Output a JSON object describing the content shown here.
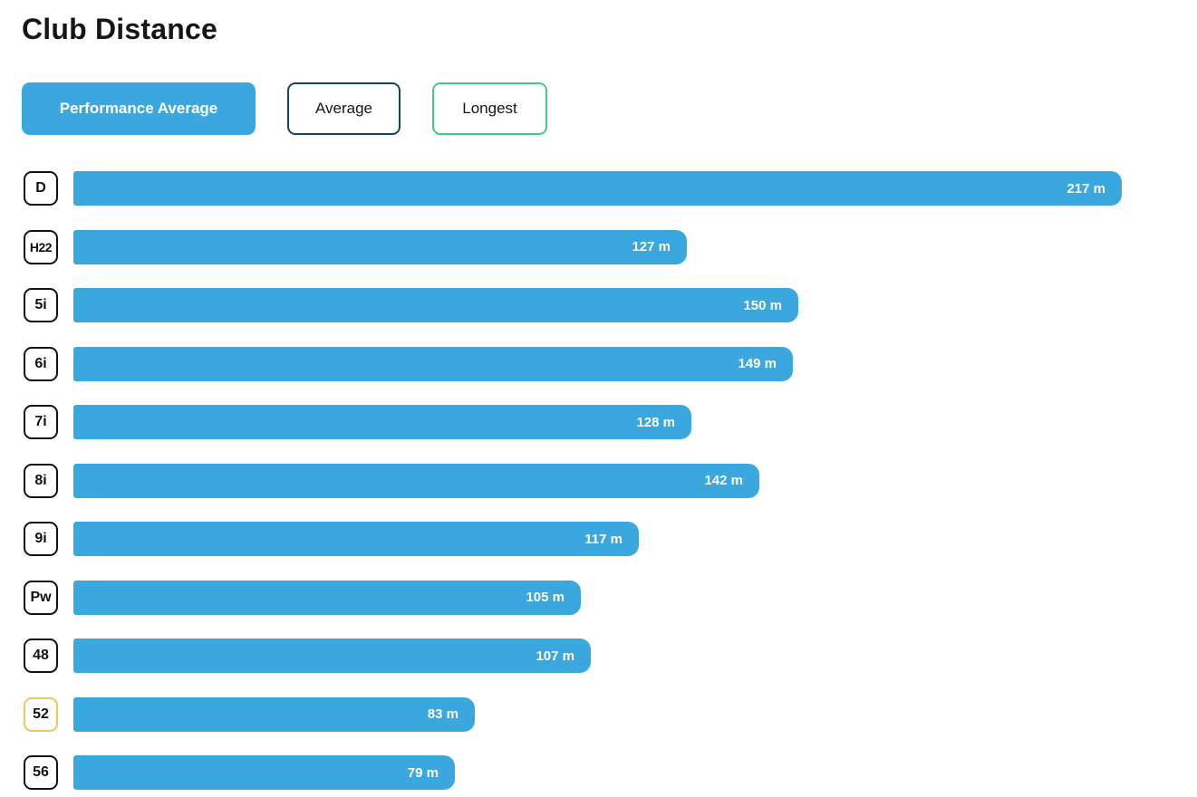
{
  "page": {
    "title": "Club Distance"
  },
  "filters": {
    "performance_average": {
      "label": "Performance Average",
      "selected": true
    },
    "average": {
      "label": "Average",
      "selected": false
    },
    "longest": {
      "label": "Longest",
      "selected": false
    }
  },
  "colors": {
    "bar_blue": "#3AA7DE",
    "selected_filter_bg": "#3AA7DE",
    "average_border_navy": "#17455E",
    "longest_border_green": "#3ECB87",
    "highlighted_club_border": "#F2C361",
    "club_box_border": "#111111",
    "bar_value_text": "#FFFFFF"
  },
  "chart_data": {
    "type": "bar",
    "orientation": "horizontal",
    "title": "Club Distance",
    "series_shown": "Performance Average",
    "unit": "m",
    "xlim": [
      0,
      217
    ],
    "grid": false,
    "legend": false,
    "categories": [
      "D",
      "H22",
      "5i",
      "6i",
      "7i",
      "8i",
      "9i",
      "Pw",
      "48",
      "52",
      "56"
    ],
    "values": [
      217,
      127,
      150,
      149,
      128,
      142,
      117,
      105,
      107,
      83,
      79
    ],
    "value_labels": [
      "217 m",
      "127 m",
      "150 m",
      "149 m",
      "128 m",
      "142 m",
      "117 m",
      "105 m",
      "107 m",
      "83 m",
      "79 m"
    ],
    "highlighted_category": "52"
  }
}
